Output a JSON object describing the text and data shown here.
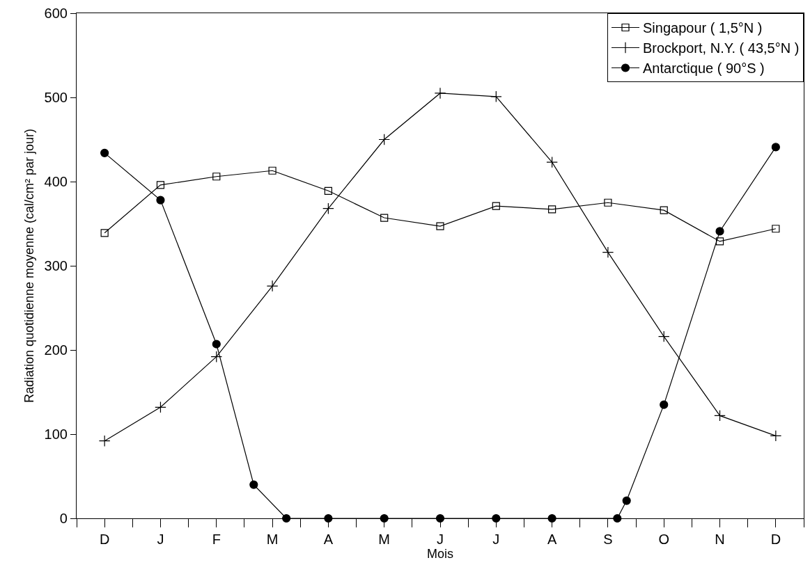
{
  "chart_data": {
    "type": "line",
    "xlabel": "Mois",
    "ylabel": "Radiation quotidienne moyenne (cal/cm² par jour)",
    "categories": [
      "D",
      null,
      null,
      null,
      null,
      null,
      null,
      null,
      null,
      null,
      null,
      null,
      "J",
      null,
      null,
      null,
      null,
      null,
      null,
      null,
      null,
      null,
      null,
      null,
      "F",
      null,
      null,
      null,
      null,
      null,
      null,
      null,
      null,
      null,
      null,
      null,
      "M",
      null,
      null,
      null,
      null,
      null,
      null,
      null,
      null,
      null,
      null,
      null,
      "A",
      null,
      null,
      null,
      null,
      null,
      null,
      null,
      null,
      null,
      null,
      null,
      "M",
      null,
      null,
      null,
      null,
      null,
      null,
      null,
      null,
      null,
      null,
      null,
      "J",
      null,
      null,
      null,
      null,
      null,
      null,
      null,
      null,
      null,
      null,
      null,
      "J",
      null,
      null,
      null,
      null,
      null,
      null,
      null,
      null,
      null,
      null,
      null,
      "A",
      null,
      null,
      null,
      null,
      null,
      null,
      null,
      null,
      null,
      null,
      null,
      "S",
      null,
      null,
      null,
      null,
      null,
      null,
      null,
      null,
      null,
      null,
      null,
      "O",
      null,
      null,
      null,
      null,
      null,
      null,
      null,
      null,
      null,
      null,
      null,
      "N",
      null,
      null,
      null,
      null,
      null,
      null,
      null,
      null,
      null,
      null,
      null,
      "D"
    ],
    "ylim": [
      0,
      600
    ],
    "yticks": [
      0,
      100,
      200,
      300,
      400,
      500,
      600
    ],
    "legend": "top right",
    "line_style": "solid",
    "series": [
      {
        "name": "Singapour ( 1,5°N )",
        "color": "#000000",
        "marker": "square",
        "values": [
          339,
          null,
          null,
          null,
          null,
          null,
          null,
          null,
          null,
          null,
          null,
          null,
          396,
          null,
          null,
          null,
          null,
          null,
          null,
          null,
          null,
          null,
          null,
          null,
          406,
          null,
          null,
          null,
          null,
          null,
          null,
          null,
          null,
          null,
          null,
          null,
          413,
          null,
          null,
          null,
          null,
          null,
          null,
          null,
          null,
          null,
          null,
          null,
          389,
          null,
          null,
          null,
          null,
          null,
          null,
          null,
          null,
          null,
          null,
          null,
          357,
          null,
          null,
          null,
          null,
          null,
          null,
          null,
          null,
          null,
          null,
          null,
          347,
          null,
          null,
          null,
          null,
          null,
          null,
          null,
          null,
          null,
          null,
          null,
          371,
          null,
          null,
          null,
          null,
          null,
          null,
          null,
          null,
          null,
          null,
          null,
          367,
          null,
          null,
          null,
          null,
          null,
          null,
          null,
          null,
          null,
          null,
          null,
          375,
          null,
          null,
          null,
          null,
          null,
          null,
          null,
          null,
          null,
          null,
          null,
          366,
          null,
          null,
          null,
          null,
          null,
          null,
          null,
          null,
          null,
          null,
          null,
          329,
          null,
          null,
          null,
          null,
          null,
          null,
          null,
          null,
          null,
          null,
          null,
          344
        ]
      },
      {
        "name": "Brockport, N.Y. ( 43,5°N )",
        "color": "#000000",
        "marker": "cross",
        "values": [
          92,
          null,
          null,
          null,
          null,
          null,
          null,
          null,
          null,
          null,
          null,
          null,
          132,
          null,
          null,
          null,
          null,
          null,
          null,
          null,
          null,
          null,
          null,
          null,
          192,
          null,
          null,
          null,
          null,
          null,
          null,
          null,
          null,
          null,
          null,
          null,
          276,
          null,
          null,
          null,
          null,
          null,
          null,
          null,
          null,
          null,
          null,
          null,
          368,
          null,
          null,
          null,
          null,
          null,
          null,
          null,
          null,
          null,
          null,
          null,
          450,
          null,
          null,
          null,
          null,
          null,
          null,
          null,
          null,
          null,
          null,
          null,
          505,
          null,
          null,
          null,
          null,
          null,
          null,
          null,
          null,
          null,
          null,
          null,
          501,
          null,
          null,
          null,
          null,
          null,
          null,
          null,
          null,
          null,
          null,
          null,
          423,
          null,
          null,
          null,
          null,
          null,
          null,
          null,
          null,
          null,
          null,
          null,
          316,
          null,
          null,
          null,
          null,
          null,
          null,
          null,
          null,
          null,
          null,
          null,
          216,
          null,
          null,
          null,
          null,
          null,
          null,
          null,
          null,
          null,
          null,
          null,
          122,
          null,
          null,
          null,
          null,
          null,
          null,
          null,
          null,
          null,
          null,
          null,
          98
        ]
      },
      {
        "name": "Antarctique ( 90°S )",
        "color": "#000000",
        "marker": "circle",
        "values": [
          434,
          null,
          null,
          null,
          null,
          null,
          null,
          null,
          null,
          null,
          null,
          null,
          378,
          null,
          null,
          null,
          null,
          null,
          null,
          null,
          null,
          null,
          null,
          null,
          207,
          null,
          null,
          null,
          null,
          null,
          null,
          null,
          40,
          null,
          null,
          null,
          null,
          null,
          null,
          0,
          null,
          null,
          null,
          null,
          null,
          null,
          null,
          null,
          0,
          null,
          null,
          null,
          null,
          null,
          null,
          null,
          null,
          null,
          null,
          null,
          0,
          null,
          null,
          null,
          null,
          null,
          null,
          null,
          null,
          null,
          null,
          null,
          0,
          null,
          null,
          null,
          null,
          null,
          null,
          null,
          null,
          null,
          null,
          null,
          0,
          null,
          null,
          null,
          null,
          null,
          null,
          null,
          null,
          null,
          null,
          null,
          0,
          null,
          null,
          null,
          null,
          null,
          null,
          null,
          null,
          null,
          null,
          null,
          null,
          null,
          0,
          null,
          21,
          null,
          null,
          null,
          null,
          null,
          null,
          null,
          135,
          null,
          null,
          null,
          null,
          null,
          null,
          null,
          null,
          null,
          null,
          null,
          341,
          null,
          null,
          null,
          null,
          null,
          null,
          null,
          null,
          null,
          null,
          null,
          441
        ]
      }
    ]
  }
}
